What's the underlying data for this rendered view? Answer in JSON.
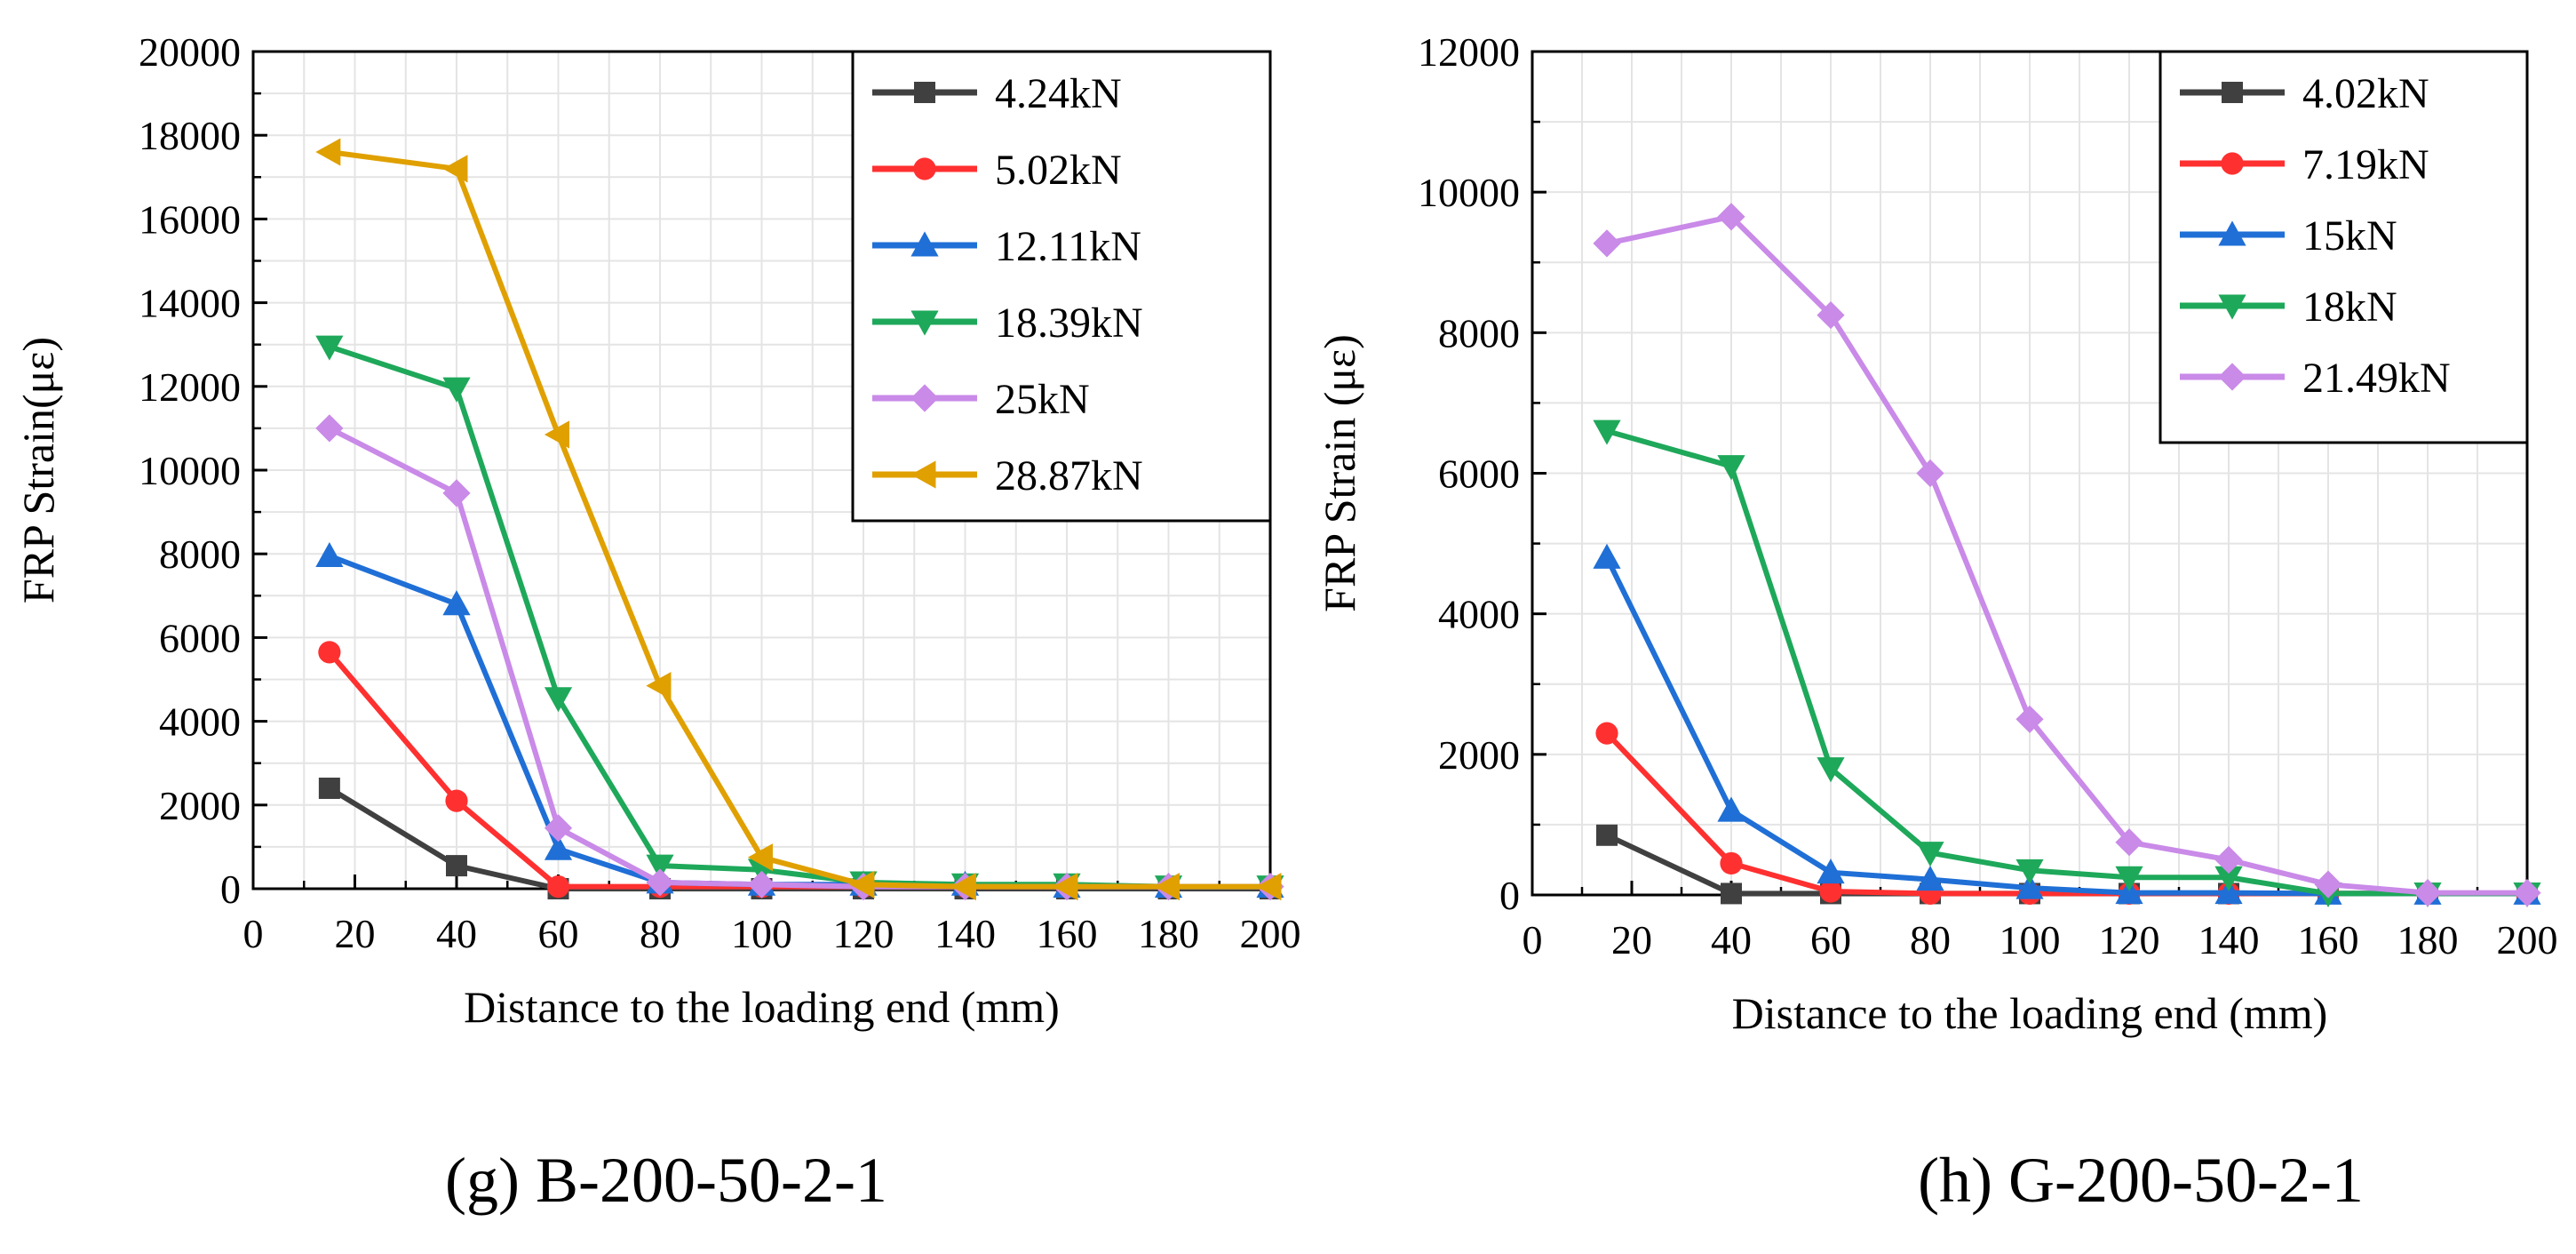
{
  "chart_data": [
    {
      "type": "line",
      "caption": "(g) B-200-50-2-1",
      "xlabel": "Distance to the loading end (mm)",
      "ylabel": "FRP Strain(με)",
      "xlim": [
        0,
        200
      ],
      "ylim": [
        0,
        20000
      ],
      "xticks": [
        "0",
        "20",
        "40",
        "60",
        "80",
        "100",
        "120",
        "140",
        "160",
        "180",
        "200"
      ],
      "yticks": [
        "0",
        "2000",
        "4000",
        "6000",
        "8000",
        "10000",
        "12000",
        "14000",
        "16000",
        "18000",
        "20000"
      ],
      "grid": true,
      "legend_position": "top-right",
      "x": [
        15,
        40,
        60,
        80,
        100,
        120,
        140,
        160,
        180,
        200
      ],
      "series": [
        {
          "name": "4.24kN",
          "color": "#404040",
          "marker": "square",
          "values": [
            2400,
            550,
            0,
            0,
            0,
            0,
            0,
            0,
            0,
            0
          ]
        },
        {
          "name": "5.02kN",
          "color": "#ff3030",
          "marker": "circle",
          "values": [
            5650,
            2100,
            50,
            50,
            50,
            50,
            50,
            50,
            50,
            50
          ]
        },
        {
          "name": "12.11kN",
          "color": "#1f6fd6",
          "marker": "triangle-up",
          "values": [
            7950,
            6800,
            950,
            150,
            100,
            100,
            100,
            50,
            50,
            50
          ]
        },
        {
          "name": "18.39kN",
          "color": "#1ea85a",
          "marker": "triangle-down",
          "values": [
            12950,
            11950,
            4550,
            550,
            450,
            150,
            100,
            100,
            50,
            50
          ]
        },
        {
          "name": "25kN",
          "color": "#c98ae8",
          "marker": "diamond",
          "values": [
            11000,
            9450,
            1450,
            150,
            100,
            50,
            50,
            50,
            50,
            50
          ]
        },
        {
          "name": "28.87kN",
          "color": "#e0a000",
          "marker": "triangle-left",
          "values": [
            17600,
            17200,
            10850,
            4850,
            750,
            100,
            50,
            50,
            50,
            50
          ]
        }
      ]
    },
    {
      "type": "line",
      "caption": "(h) G-200-50-2-1",
      "xlabel": "Distance to the loading end (mm)",
      "ylabel": "FRP Strain (με)",
      "xlim": [
        0,
        200
      ],
      "ylim": [
        0,
        12000
      ],
      "xticks": [
        "0",
        "20",
        "40",
        "60",
        "80",
        "100",
        "120",
        "140",
        "160",
        "180",
        "200"
      ],
      "yticks": [
        "0",
        "2000",
        "4000",
        "6000",
        "8000",
        "10000",
        "12000"
      ],
      "grid": true,
      "legend_position": "top-right",
      "x": [
        15,
        40,
        60,
        80,
        100,
        120,
        140,
        160,
        180,
        200
      ],
      "series": [
        {
          "name": "4.02kN",
          "color": "#404040",
          "marker": "square",
          "values": [
            850,
            20,
            20,
            20,
            20,
            20,
            20,
            20,
            20,
            20
          ]
        },
        {
          "name": "7.19kN",
          "color": "#ff3030",
          "marker": "circle",
          "values": [
            2300,
            450,
            50,
            20,
            20,
            20,
            20,
            20,
            20,
            20
          ]
        },
        {
          "name": "15kN",
          "color": "#1f6fd6",
          "marker": "triangle-up",
          "values": [
            4800,
            1200,
            320,
            220,
            100,
            30,
            30,
            20,
            20,
            20
          ]
        },
        {
          "name": "18kN",
          "color": "#1ea85a",
          "marker": "triangle-down",
          "values": [
            6600,
            6100,
            1800,
            600,
            350,
            250,
            250,
            20,
            20,
            20
          ]
        },
        {
          "name": "21.49kN",
          "color": "#c98ae8",
          "marker": "diamond",
          "values": [
            9270,
            9650,
            8250,
            6000,
            2500,
            750,
            500,
            150,
            30,
            30
          ]
        }
      ]
    }
  ]
}
